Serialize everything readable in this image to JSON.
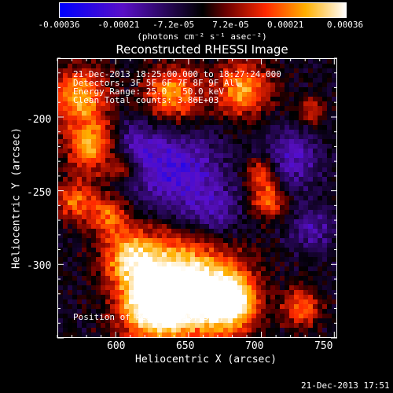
{
  "colorbar": {
    "tick_labels": [
      "-0.00036",
      "-0.00021",
      "-7.2e-05",
      "7.2e-05",
      "0.00021",
      "0.00036"
    ],
    "tick_values": [
      -0.00036,
      -0.00021,
      -7.2e-05,
      7.2e-05,
      0.00021,
      0.00036
    ],
    "range": [
      -0.00036,
      0.00036
    ],
    "units": "(photons cm⁻² s⁻¹ asec⁻²)",
    "colors": [
      "#0000ff",
      "#5a10c8",
      "#000000",
      "#6a0000",
      "#ff2a00",
      "#ffb000",
      "#ffffff"
    ]
  },
  "plot": {
    "title": "Reconstructed RHESSI Image",
    "xlabel": "Heliocentric X (arcsec)",
    "ylabel": "Heliocentric Y (arcsec)",
    "xticks": [
      "600",
      "650",
      "700",
      "750"
    ],
    "yticks": [
      "-200",
      "-250",
      "-300"
    ],
    "info_lines": [
      "21-Dec-2013 18:25:00.000 to 18:27:24.000",
      "Detectors: 3F 5F 6F 7F 8F 9F  All",
      "Energy Range: 25.0 - 50.0 keV",
      "Clean      Total counts: 3.86E+03"
    ],
    "peak_label": "Position of Peak = [695,-315]"
  },
  "chart_data": {
    "type": "heatmap",
    "title": "Reconstructed RHESSI Image",
    "xlabel": "Heliocentric X (arcsec)",
    "ylabel": "Heliocentric Y (arcsec)",
    "xlim": [
      560,
      752
    ],
    "ylim": [
      -350,
      -160
    ],
    "xticks": [
      600,
      650,
      700,
      750
    ],
    "yticks": [
      -200,
      -250,
      -300
    ],
    "colorbar_range": [
      -0.00036,
      0.00036
    ],
    "colorbar_ticks": [
      -0.00036,
      -0.00021,
      -7.2e-05,
      7.2e-05,
      0.00021,
      0.00036
    ],
    "peak_position": [
      695,
      -315
    ]
  },
  "footer": {
    "timestamp": "21-Dec-2013 17:51"
  }
}
